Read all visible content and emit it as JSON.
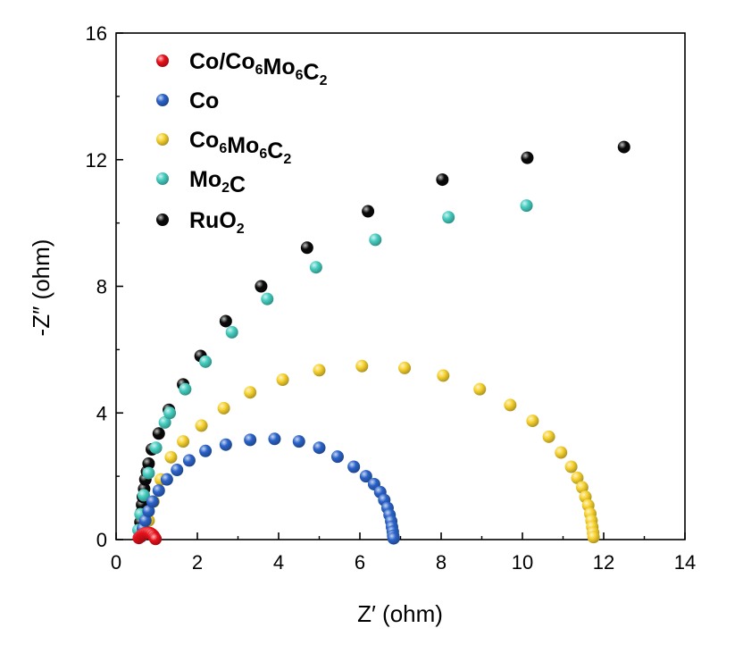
{
  "chart_data": {
    "type": "scatter",
    "title": "",
    "xlabel": "Z′ (ohm)",
    "ylabel": "-Z″ (ohm)",
    "xlim": [
      0,
      14
    ],
    "ylim": [
      0,
      16
    ],
    "xticks": [
      0,
      2,
      4,
      6,
      8,
      10,
      12,
      14
    ],
    "yticks": [
      0,
      4,
      8,
      12,
      16
    ],
    "grid": false,
    "legend_position": "top-left",
    "series": [
      {
        "name": "Co/Co6Mo6C2",
        "label_parts": [
          [
            "Co/Co",
            false
          ],
          [
            "6",
            true
          ],
          [
            "Mo",
            false
          ],
          [
            "6",
            true
          ],
          [
            "C",
            false
          ],
          [
            "2",
            true
          ]
        ],
        "color": "#e8101a",
        "points": [
          [
            0.56,
            0.05
          ],
          [
            0.6,
            0.1
          ],
          [
            0.64,
            0.15
          ],
          [
            0.68,
            0.18
          ],
          [
            0.72,
            0.2
          ],
          [
            0.76,
            0.21
          ],
          [
            0.8,
            0.21
          ],
          [
            0.84,
            0.2
          ],
          [
            0.88,
            0.17
          ],
          [
            0.92,
            0.12
          ],
          [
            0.95,
            0.06
          ],
          [
            0.97,
            0.02
          ]
        ]
      },
      {
        "name": "Co",
        "label_parts": [
          [
            "Co",
            false
          ]
        ],
        "color": "#2b63c9",
        "points": [
          [
            0.62,
            0.1
          ],
          [
            0.66,
            0.35
          ],
          [
            0.72,
            0.6
          ],
          [
            0.8,
            0.9
          ],
          [
            0.9,
            1.2
          ],
          [
            1.05,
            1.55
          ],
          [
            1.25,
            1.9
          ],
          [
            1.5,
            2.2
          ],
          [
            1.8,
            2.5
          ],
          [
            2.2,
            2.8
          ],
          [
            2.7,
            3.0
          ],
          [
            3.3,
            3.15
          ],
          [
            3.9,
            3.18
          ],
          [
            4.5,
            3.1
          ],
          [
            5.0,
            2.9
          ],
          [
            5.45,
            2.62
          ],
          [
            5.85,
            2.3
          ],
          [
            6.15,
            2.0
          ],
          [
            6.35,
            1.75
          ],
          [
            6.5,
            1.5
          ],
          [
            6.6,
            1.25
          ],
          [
            6.68,
            1.0
          ],
          [
            6.73,
            0.78
          ],
          [
            6.77,
            0.58
          ],
          [
            6.79,
            0.4
          ],
          [
            6.81,
            0.25
          ],
          [
            6.82,
            0.12
          ],
          [
            6.83,
            0.04
          ]
        ]
      },
      {
        "name": "Co6Mo6C2",
        "label_parts": [
          [
            "Co",
            false
          ],
          [
            "6",
            true
          ],
          [
            "Mo",
            false
          ],
          [
            "6",
            true
          ],
          [
            "C",
            false
          ],
          [
            "2",
            true
          ]
        ],
        "color": "#f7d22e",
        "points": [
          [
            0.72,
            0.2
          ],
          [
            0.8,
            0.6
          ],
          [
            0.92,
            1.2
          ],
          [
            1.1,
            1.9
          ],
          [
            1.35,
            2.6
          ],
          [
            1.65,
            3.1
          ],
          [
            2.1,
            3.6
          ],
          [
            2.65,
            4.15
          ],
          [
            3.3,
            4.65
          ],
          [
            4.1,
            5.05
          ],
          [
            5.0,
            5.35
          ],
          [
            6.05,
            5.48
          ],
          [
            7.1,
            5.42
          ],
          [
            8.05,
            5.18
          ],
          [
            8.95,
            4.75
          ],
          [
            9.7,
            4.25
          ],
          [
            10.25,
            3.75
          ],
          [
            10.65,
            3.25
          ],
          [
            10.95,
            2.75
          ],
          [
            11.2,
            2.3
          ],
          [
            11.35,
            1.95
          ],
          [
            11.47,
            1.65
          ],
          [
            11.55,
            1.35
          ],
          [
            11.62,
            1.08
          ],
          [
            11.67,
            0.82
          ],
          [
            11.7,
            0.6
          ],
          [
            11.72,
            0.4
          ],
          [
            11.74,
            0.22
          ],
          [
            11.75,
            0.08
          ]
        ]
      },
      {
        "name": "Mo2C",
        "label_parts": [
          [
            "Mo",
            false
          ],
          [
            "2",
            true
          ],
          [
            "C",
            false
          ]
        ],
        "color": "#45cdc0",
        "points": [
          [
            0.55,
            0.3
          ],
          [
            0.6,
            0.8
          ],
          [
            0.68,
            1.4
          ],
          [
            0.8,
            2.1
          ],
          [
            0.98,
            2.9
          ],
          [
            1.2,
            3.7
          ],
          [
            1.32,
            4.0
          ],
          [
            1.7,
            4.75
          ],
          [
            2.2,
            5.62
          ],
          [
            2.85,
            6.55
          ],
          [
            3.72,
            7.6
          ],
          [
            4.92,
            8.6
          ],
          [
            6.38,
            9.47
          ],
          [
            8.18,
            10.18
          ],
          [
            10.1,
            10.55
          ]
        ]
      },
      {
        "name": "RuO2",
        "label_parts": [
          [
            "RuO",
            false
          ],
          [
            "2",
            true
          ]
        ],
        "color": "#0a0a0a",
        "points": [
          [
            0.6,
            0.55
          ],
          [
            0.62,
            0.85
          ],
          [
            0.64,
            1.1
          ],
          [
            0.66,
            1.35
          ],
          [
            0.69,
            1.6
          ],
          [
            0.72,
            1.9
          ],
          [
            0.76,
            2.15
          ],
          [
            0.8,
            2.4
          ],
          [
            0.88,
            2.85
          ],
          [
            1.05,
            3.35
          ],
          [
            1.3,
            4.1
          ],
          [
            1.65,
            4.9
          ],
          [
            2.08,
            5.8
          ],
          [
            2.7,
            6.9
          ],
          [
            3.57,
            8.0
          ],
          [
            4.7,
            9.22
          ],
          [
            6.2,
            10.37
          ],
          [
            8.03,
            11.37
          ],
          [
            10.12,
            12.06
          ],
          [
            12.5,
            12.4
          ]
        ]
      }
    ]
  }
}
